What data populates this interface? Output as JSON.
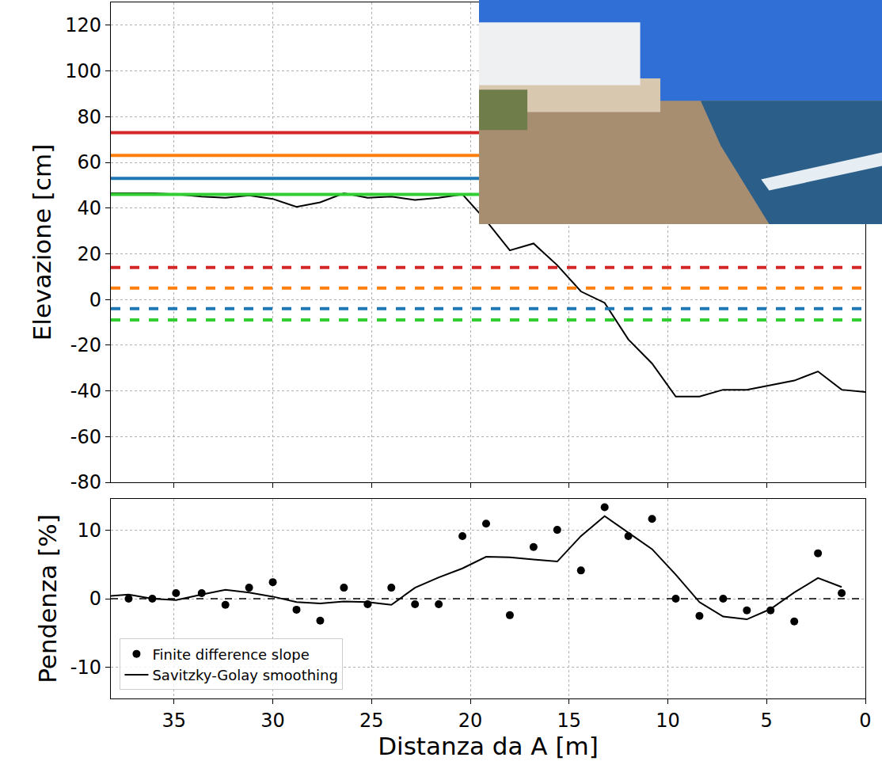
{
  "chart_data": [
    {
      "type": "line",
      "ylabel": "Elevazione [cm]",
      "xlim": [
        38.2,
        0
      ],
      "xticks": [
        35,
        30,
        25,
        20,
        15,
        10,
        5,
        0
      ],
      "ylim": [
        -80,
        130
      ],
      "yticks": [
        -80,
        -60,
        -40,
        -20,
        0,
        20,
        40,
        60,
        80,
        100,
        120
      ],
      "grid": true,
      "tick_labels": "y",
      "series": [
        {
          "type": "hline",
          "color": "#d62728",
          "line_style": "solid",
          "values": [
            73
          ]
        },
        {
          "type": "hline",
          "color": "#ff7f0e",
          "line_style": "solid",
          "values": [
            63
          ]
        },
        {
          "type": "hline",
          "color": "#1f77b4",
          "line_style": "solid",
          "values": [
            53
          ]
        },
        {
          "type": "hline",
          "color": "#32cd32",
          "line_style": "solid",
          "values": [
            46
          ]
        },
        {
          "type": "hline",
          "color": "#d62728",
          "line_style": "dashed",
          "values": [
            14
          ]
        },
        {
          "type": "hline",
          "color": "#ff7f0e",
          "line_style": "dashed",
          "values": [
            5
          ]
        },
        {
          "type": "hline",
          "color": "#1f77b4",
          "line_style": "dashed",
          "values": [
            -4
          ]
        },
        {
          "type": "hline",
          "color": "#32cd32",
          "line_style": "dashed",
          "values": [
            -9
          ]
        },
        {
          "type": "line",
          "color": "#000000",
          "line_style": "solid",
          "x": [
            38.2,
            37.2,
            36.0,
            34.8,
            33.6,
            32.4,
            31.2,
            30.0,
            28.8,
            27.6,
            26.4,
            25.2,
            24.0,
            22.8,
            21.6,
            20.4,
            19.2,
            18.0,
            16.8,
            15.6,
            14.4,
            13.2,
            12.0,
            10.8,
            9.6,
            8.4,
            7.2,
            6.0,
            4.8,
            3.6,
            2.4,
            1.2,
            0
          ],
          "values": [
            46.5,
            46.5,
            46.5,
            46,
            45,
            44.5,
            45.5,
            44,
            40.5,
            42.5,
            46.5,
            44.5,
            45,
            43.5,
            44.5,
            46,
            34.5,
            21.5,
            24.5,
            15,
            3.5,
            -1.5,
            -17.5,
            -28,
            -42.5,
            -42.5,
            -39.5,
            -39.5,
            -37.5,
            -35.5,
            -31.5,
            -39.5,
            -40.5
          ]
        }
      ]
    },
    {
      "type": "scatter",
      "xlabel": "Distanza da A [m]",
      "ylabel": "Pendenza [%]",
      "xlim": [
        38.2,
        0
      ],
      "xticks": [
        35,
        30,
        25,
        20,
        15,
        10,
        5,
        0
      ],
      "ylim": [
        -14.5,
        14.5
      ],
      "yticks": [
        -10,
        0,
        10
      ],
      "grid": true,
      "legend": "lower left",
      "series": [
        {
          "type": "hline",
          "color": "#000000",
          "line_style": "dashed",
          "values": [
            0
          ]
        },
        {
          "type": "scatter",
          "name": "Finite difference slope",
          "color": "#000000",
          "marker": "circle",
          "x": [
            37.3,
            36.1,
            34.9,
            33.6,
            32.4,
            31.2,
            30.0,
            28.8,
            27.6,
            26.4,
            25.2,
            24.0,
            22.8,
            21.6,
            20.4,
            19.2,
            18.0,
            16.8,
            15.6,
            14.4,
            13.2,
            12.0,
            10.8,
            9.6,
            8.4,
            7.2,
            6.0,
            4.8,
            3.6,
            2.4,
            1.2
          ],
          "values": [
            0,
            0,
            0.8,
            0.8,
            -0.9,
            1.6,
            2.4,
            -1.6,
            -3.2,
            1.6,
            -0.8,
            1.6,
            -0.8,
            -0.8,
            9.1,
            10.9,
            -2.4,
            7.5,
            10.0,
            4.1,
            13.3,
            9.1,
            11.6,
            0,
            -2.5,
            0,
            -1.7,
            -1.7,
            -3.3,
            6.6,
            0.8
          ]
        },
        {
          "type": "line",
          "name": "Savitzky-Golay smoothing",
          "color": "#000000",
          "line_style": "solid",
          "x": [
            38.2,
            37.3,
            36.1,
            34.9,
            33.6,
            32.4,
            31.2,
            30.0,
            28.8,
            27.6,
            26.4,
            25.2,
            24.0,
            22.8,
            21.6,
            20.4,
            19.2,
            18.0,
            16.8,
            15.6,
            14.4,
            13.2,
            12.0,
            10.8,
            9.6,
            8.4,
            7.2,
            6.0,
            4.8,
            3.6,
            2.4,
            1.2
          ],
          "values": [
            0.4,
            0.6,
            0,
            -0.2,
            0.6,
            1.3,
            0.9,
            0.3,
            -0.5,
            -0.7,
            -0.4,
            -0.5,
            -0.9,
            1.6,
            3.1,
            4.4,
            6.1,
            6.0,
            5.7,
            5.4,
            9.1,
            12.0,
            9.6,
            7.2,
            3.5,
            -0.5,
            -2.6,
            -3.0,
            -1.5,
            0.9,
            3.0,
            1.7
          ]
        }
      ]
    }
  ]
}
